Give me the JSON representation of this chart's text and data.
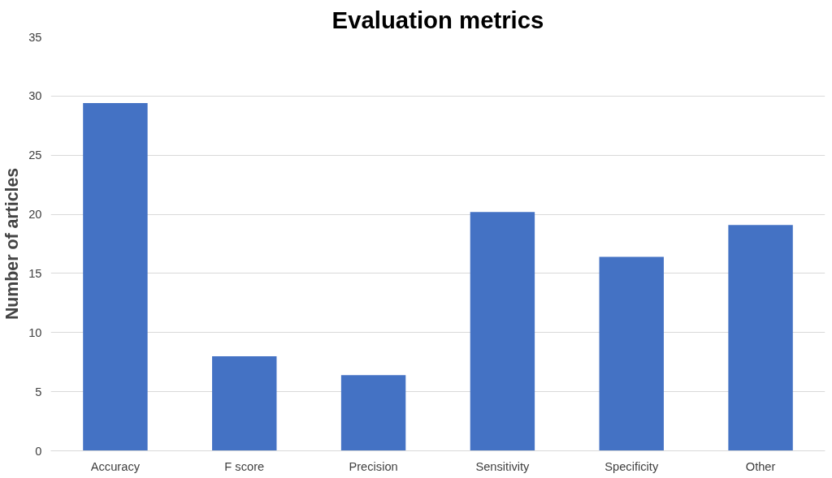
{
  "chart_data": {
    "type": "bar",
    "title": "Evaluation metrics",
    "ylabel": "Number of articles",
    "categories": [
      "Accuracy",
      "F score",
      "Precision",
      "Sensitivity",
      "Specificity",
      "Other"
    ],
    "values": [
      29.4,
      8,
      6.4,
      20.2,
      16.4,
      19.1
    ],
    "color": "#4472c4",
    "ylim": [
      0,
      35
    ],
    "yticks": [
      0,
      5,
      10,
      15,
      20,
      25,
      30,
      35
    ],
    "grid": "y"
  }
}
